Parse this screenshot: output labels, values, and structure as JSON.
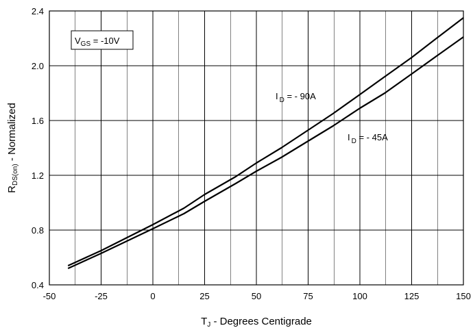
{
  "chart_data": {
    "type": "line",
    "title": "",
    "xlabel": {
      "main": "T",
      "sub": "J",
      "rest": " - Degrees Centigrade"
    },
    "ylabel": {
      "main": "R",
      "sub": "DS(on)",
      "rest": " - Normalized"
    },
    "xlim": [
      -50,
      150
    ],
    "ylim": [
      0.4,
      2.4
    ],
    "x_ticks": [
      "-50",
      "-25",
      "0",
      "25",
      "50",
      "75",
      "100",
      "125",
      "150"
    ],
    "y_ticks": [
      "0.4",
      "0.8",
      "1.2",
      "1.6",
      "2.0",
      "2.4"
    ],
    "x_tick_values": [
      -50,
      -25,
      0,
      25,
      50,
      75,
      100,
      125,
      150
    ],
    "y_tick_values": [
      0.4,
      0.8,
      1.2,
      1.6,
      2.0,
      2.4
    ],
    "x_minor_step": 12.5,
    "grid": true,
    "condition": {
      "main": "V",
      "sub": "GS",
      "rest": " = -10V"
    },
    "series": [
      {
        "name": {
          "main": "I",
          "sub": "D",
          "rest": " = - 90A"
        },
        "x": [
          -41,
          -25,
          0,
          15,
          25,
          40,
          50,
          62,
          75,
          87,
          100,
          112,
          125,
          137,
          150
        ],
        "y": [
          0.54,
          0.65,
          0.84,
          0.96,
          1.06,
          1.19,
          1.29,
          1.4,
          1.53,
          1.65,
          1.79,
          1.92,
          2.06,
          2.2,
          2.35
        ]
      },
      {
        "name": {
          "main": "I",
          "sub": "D",
          "rest": " = - 45A"
        },
        "x": [
          -41,
          -25,
          0,
          15,
          25,
          40,
          50,
          62,
          75,
          87,
          100,
          112,
          125,
          137,
          150
        ],
        "y": [
          0.52,
          0.63,
          0.81,
          0.92,
          1.01,
          1.14,
          1.23,
          1.33,
          1.45,
          1.56,
          1.69,
          1.8,
          1.94,
          2.07,
          2.21
        ]
      }
    ]
  }
}
